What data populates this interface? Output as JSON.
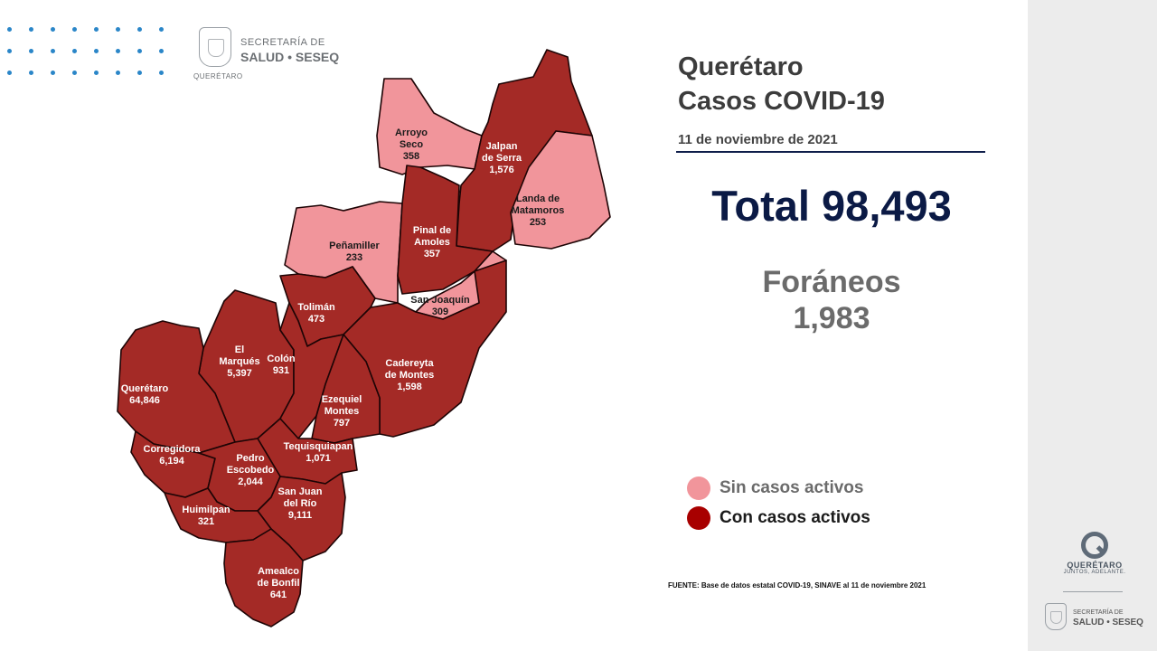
{
  "header": {
    "logo_line1": "SECRETARÍA DE",
    "logo_line2": "SALUD • SESEQ",
    "logo_line3": "QUERÉTARO"
  },
  "title": {
    "line1": "Querétaro",
    "line2": "Casos COVID-19"
  },
  "date": "11 de noviembre de 2021",
  "total_label": "Total 98,493",
  "foraneos": {
    "label": "Foráneos",
    "value": "1,983"
  },
  "legend": [
    {
      "label": "Sin casos activos",
      "color": "#f1959b"
    },
    {
      "label": "Con casos activos",
      "color": "#a80000"
    }
  ],
  "source": "FUENTE: Base de datos estatal COVID-19, SINAVE al 11 de noviembre 2021",
  "colors": {
    "active": "#a42a26",
    "inactive": "#f1959b",
    "title": "#3c3c3c",
    "total": "#0b1a45"
  },
  "municipalities": [
    {
      "name_lines": [
        "Arroyo",
        "Seco"
      ],
      "cases": "358",
      "status": "inactive"
    },
    {
      "name_lines": [
        "Jalpan",
        "de Serra"
      ],
      "cases": "1,576",
      "status": "active"
    },
    {
      "name_lines": [
        "Landa de",
        "Matamoros"
      ],
      "cases": "253",
      "status": "inactive"
    },
    {
      "name_lines": [
        "Peñamiller"
      ],
      "cases": "233",
      "status": "inactive"
    },
    {
      "name_lines": [
        "Pinal de",
        "Amoles"
      ],
      "cases": "357",
      "status": "active"
    },
    {
      "name_lines": [
        "San Joaquín"
      ],
      "cases": "309",
      "status": "inactive"
    },
    {
      "name_lines": [
        "Tolimán"
      ],
      "cases": "473",
      "status": "active"
    },
    {
      "name_lines": [
        "El",
        "Marqués"
      ],
      "cases": "5,397",
      "status": "active"
    },
    {
      "name_lines": [
        "Colón"
      ],
      "cases": "931",
      "status": "active"
    },
    {
      "name_lines": [
        "Cadereyta",
        "de Montes"
      ],
      "cases": "1,598",
      "status": "active"
    },
    {
      "name_lines": [
        "Querétaro"
      ],
      "cases": "64,846",
      "status": "active"
    },
    {
      "name_lines": [
        "Ezequiel",
        "Montes"
      ],
      "cases": "797",
      "status": "active"
    },
    {
      "name_lines": [
        "Tequisquiapan"
      ],
      "cases": "1,071",
      "status": "active"
    },
    {
      "name_lines": [
        "Corregidora"
      ],
      "cases": "6,194",
      "status": "active"
    },
    {
      "name_lines": [
        "Pedro",
        "Escobedo"
      ],
      "cases": "2,044",
      "status": "active"
    },
    {
      "name_lines": [
        "San Juan",
        "del Río"
      ],
      "cases": "9,111",
      "status": "active"
    },
    {
      "name_lines": [
        "Huimilpan"
      ],
      "cases": "321",
      "status": "active"
    },
    {
      "name_lines": [
        "Amealco",
        "de Bonfil"
      ],
      "cases": "641",
      "status": "active"
    }
  ],
  "footer_logo": {
    "name": "QUERÉTARO",
    "slogan": "JUNTOS, ADELANTE.",
    "seseq_line1": "SECRETARÍA DE",
    "seseq_line2": "SALUD • SESEQ"
  }
}
